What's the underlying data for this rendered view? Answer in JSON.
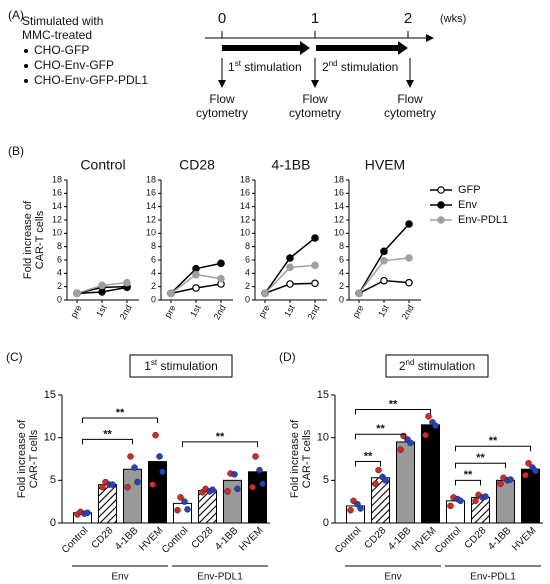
{
  "panel_a": {
    "label": "(A)",
    "intro": [
      "Stimulated with",
      "MMC-treated"
    ],
    "groups": [
      "CHO-GFP",
      "CHO-Env-GFP",
      "CHO-Env-GFP-PDL1"
    ],
    "timeline_ticks": [
      0,
      1,
      2
    ],
    "timeline_unit": "(wks)",
    "stimulations": [
      {
        "n": "1",
        "sup": "st",
        "rest": " stimulation"
      },
      {
        "n": "2",
        "sup": "nd",
        "rest": " stimulation"
      }
    ],
    "readouts": [
      [
        "Flow",
        "cytometry"
      ],
      [
        "Flow",
        "cytometry"
      ],
      [
        "Flow",
        "cytometry"
      ]
    ]
  },
  "panel_b": {
    "label": "(B)",
    "ylabel": [
      "Fold increase of",
      "CAR-T cells"
    ],
    "ylim": [
      0,
      18
    ],
    "yticks": [
      0,
      2,
      4,
      6,
      8,
      10,
      12,
      14,
      16,
      18
    ],
    "categories": [
      "pre",
      "1st",
      "2nd"
    ],
    "series_styles": [
      {
        "name": "GFP",
        "color": "#000000",
        "fill": "#ffffff"
      },
      {
        "name": "Env",
        "color": "#000000",
        "fill": "#000000"
      },
      {
        "name": "Env-PDL1",
        "color": "#a0a0a0",
        "fill": "#a0a0a0"
      }
    ],
    "charts": [
      {
        "type": "line",
        "title": "Control",
        "series": [
          [
            1,
            1.9,
            2.0
          ],
          [
            1,
            1.2,
            1.9
          ],
          [
            1,
            2.2,
            2.6
          ]
        ]
      },
      {
        "type": "line",
        "title": "CD28",
        "series": [
          [
            1,
            1.8,
            2.4
          ],
          [
            1,
            4.7,
            5.5
          ],
          [
            1,
            3.8,
            3.2
          ]
        ]
      },
      {
        "type": "line",
        "title": "4-1BB",
        "series": [
          [
            1,
            2.4,
            2.5
          ],
          [
            1,
            6.3,
            9.3
          ],
          [
            1,
            4.9,
            5.2
          ]
        ]
      },
      {
        "type": "line",
        "title": "HVEM",
        "series": [
          [
            1,
            2.9,
            2.6
          ],
          [
            1,
            7.3,
            11.4
          ],
          [
            1,
            5.9,
            6.3
          ]
        ]
      }
    ]
  },
  "panel_c": {
    "type": "bar",
    "label": "(C)",
    "title": {
      "n": "1",
      "sup": "st",
      "rest": " stimulation"
    },
    "ylabel": [
      "Fold increase of",
      "CAR-T cells"
    ],
    "categories": [
      "Control",
      "CD28",
      "4-1BB",
      "HVEM",
      "Control",
      "CD28",
      "4-1BB",
      "HVEM"
    ],
    "groups": [
      "Env",
      "Env-PDL1"
    ],
    "values": [
      1.2,
      4.5,
      6.3,
      7.2,
      2.3,
      3.8,
      5.0,
      6.0
    ],
    "fills": [
      "#ffffff",
      "hatch",
      "#999999",
      "#000000",
      "#ffffff",
      "hatch",
      "#999999",
      "#000000"
    ],
    "points": [
      [
        1.0,
        1.3,
        1.1,
        1.2
      ],
      [
        4.2,
        4.8,
        4.5,
        4.5
      ],
      [
        4.2,
        7.8,
        6.5,
        4.8
      ],
      [
        4.5,
        10.3,
        7.8,
        6.0
      ],
      [
        1.5,
        3.0,
        2.5,
        1.6
      ],
      [
        3.6,
        4.0,
        3.7,
        3.9
      ],
      [
        3.7,
        5.8,
        5.7,
        4.0
      ],
      [
        4.2,
        7.8,
        6.2,
        4.6
      ]
    ],
    "point_colors": [
      "#e02424",
      "#e02424",
      "#2542c4",
      "#2542c4"
    ],
    "ylim": [
      0,
      15
    ],
    "yticks": [
      0,
      5,
      10,
      15
    ],
    "significance": [
      "**",
      "**",
      "**"
    ]
  },
  "panel_d": {
    "type": "bar",
    "label": "(D)",
    "title": {
      "n": "2",
      "sup": "nd",
      "rest": " stimulation"
    },
    "ylabel": [
      "Fold increase of",
      "CAR-T cells"
    ],
    "categories": [
      "Control",
      "CD28",
      "4-1BB",
      "HVEM",
      "Control",
      "CD28",
      "4-1BB",
      "HVEM"
    ],
    "groups": [
      "Env",
      "Env-PDL1"
    ],
    "values": [
      2.0,
      5.3,
      9.5,
      11.5,
      2.6,
      3.0,
      5.0,
      6.3
    ],
    "fills": [
      "#ffffff",
      "hatch",
      "#999999",
      "#000000",
      "#ffffff",
      "hatch",
      "#999999",
      "#000000"
    ],
    "points": [
      [
        1.5,
        2.6,
        2.2,
        1.7
      ],
      [
        4.6,
        6.2,
        5.4,
        5.0
      ],
      [
        8.6,
        10.2,
        9.8,
        9.4
      ],
      [
        10.3,
        12.5,
        11.8,
        11.4
      ],
      [
        2.0,
        3.0,
        2.8,
        2.6
      ],
      [
        2.6,
        3.3,
        3.0,
        3.1
      ],
      [
        4.6,
        5.3,
        5.0,
        5.1
      ],
      [
        5.6,
        7.0,
        6.5,
        6.1
      ]
    ],
    "point_colors": [
      "#e02424",
      "#e02424",
      "#2542c4",
      "#2542c4"
    ],
    "ylim": [
      0,
      15
    ],
    "yticks": [
      0,
      5,
      10,
      15
    ],
    "significance": [
      "**",
      "**",
      "**",
      "**",
      "**",
      "**"
    ]
  }
}
